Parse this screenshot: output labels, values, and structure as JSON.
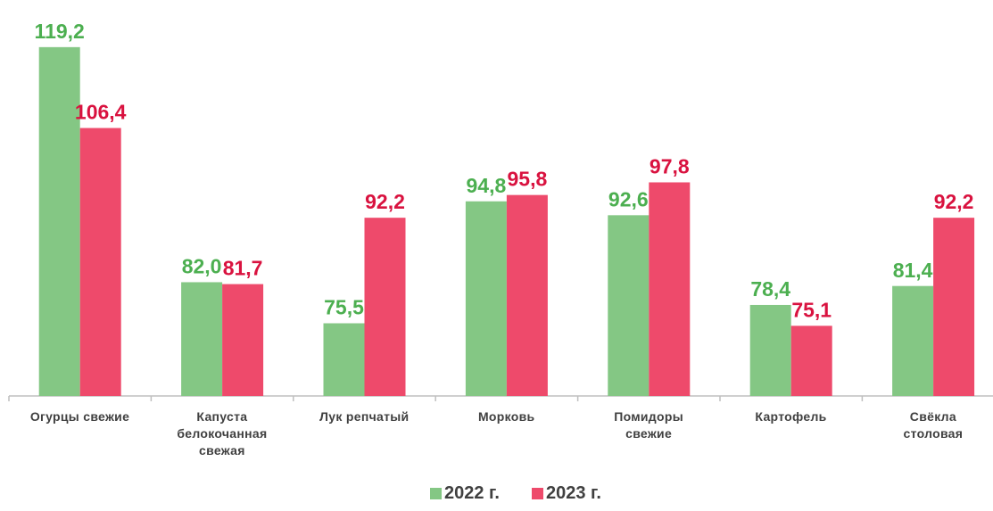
{
  "chart_data": {
    "type": "bar",
    "categories": [
      "Огурцы свежие",
      "Капуста\nбелокочанная\nсвежая",
      "Лук репчатый",
      "Морковь",
      "Помидоры\nсвежие",
      "Картофель",
      "Свёкла\nстоловая"
    ],
    "series": [
      {
        "name": "2022 г.",
        "color": "#84c784",
        "label_color": "#4caf50",
        "values": [
          119.2,
          82.0,
          75.5,
          94.8,
          92.6,
          78.4,
          81.4
        ],
        "value_labels": [
          "119,2",
          "82,0",
          "75,5",
          "94,8",
          "92,6",
          "78,4",
          "81,4"
        ]
      },
      {
        "name": "2023 г.",
        "color": "#ee4a6b",
        "label_color": "#d9123f",
        "values": [
          106.4,
          81.7,
          92.2,
          95.8,
          97.8,
          75.1,
          92.2
        ],
        "value_labels": [
          "106,4",
          "81,7",
          "92,2",
          "95,8",
          "97,8",
          "75,1",
          "92,2"
        ]
      }
    ],
    "ylim": [
      64,
      122
    ],
    "legend": "bottom"
  }
}
